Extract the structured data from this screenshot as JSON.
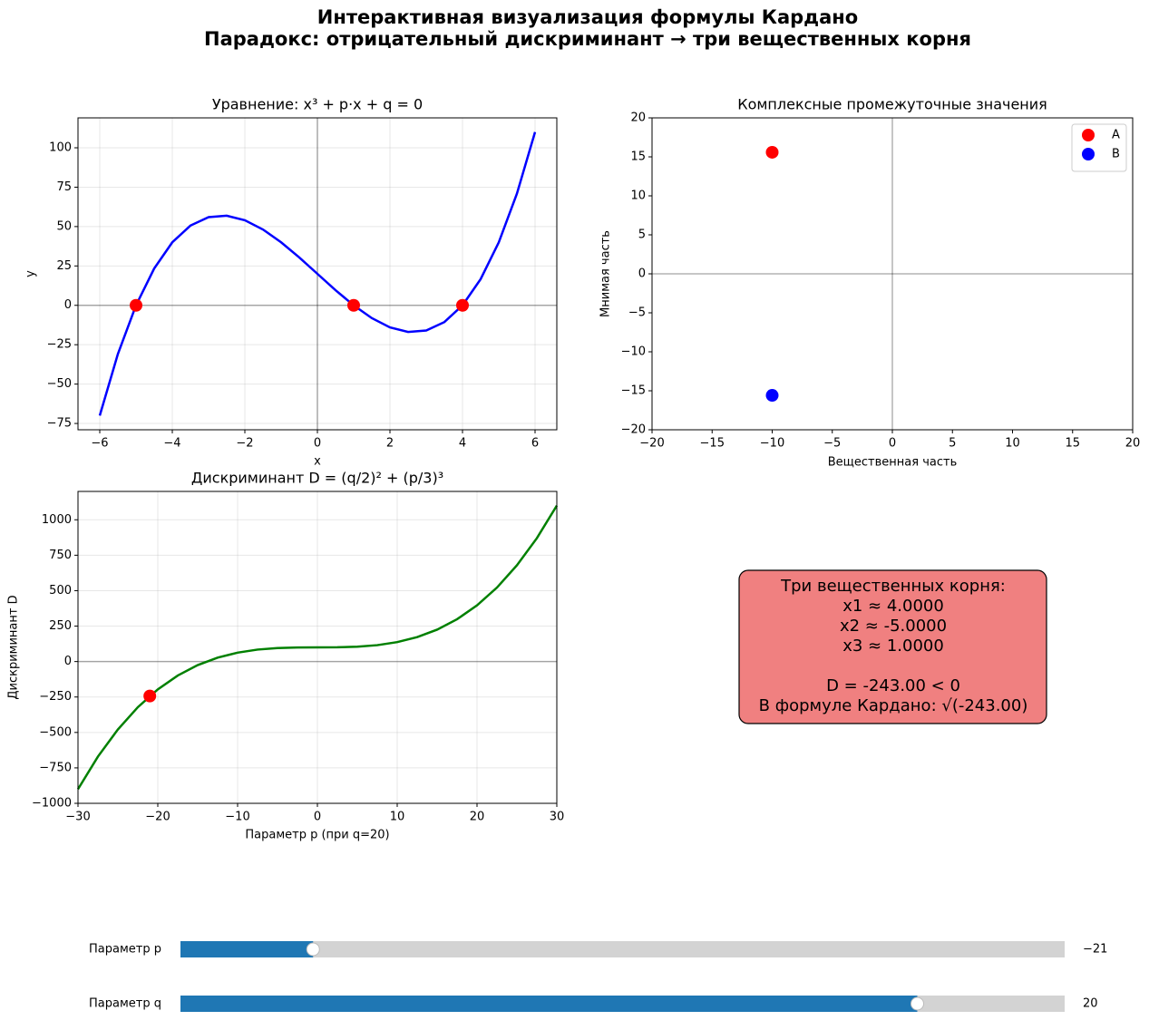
{
  "title_lines": [
    "Интерактивная визуализация формулы Кардано",
    "Парадокс: отрицательный дискриминант → три вещественных корня"
  ],
  "chart_data": [
    {
      "type": "line",
      "title": "Уравнение: x³ + p·x + q = 0",
      "xlabel": "x",
      "ylabel": "y",
      "xlim": [
        -6.6,
        6.6
      ],
      "ylim": [
        -79,
        119
      ],
      "xticks": [
        {
          "value": -6,
          "label": "−6"
        },
        {
          "value": -4,
          "label": "−4"
        },
        {
          "value": -2,
          "label": "−2"
        },
        0,
        2,
        4,
        6
      ],
      "yticks": [
        {
          "value": -75,
          "label": "−75"
        },
        {
          "value": -50,
          "label": "−50"
        },
        {
          "value": -25,
          "label": "−25"
        },
        0,
        25,
        50,
        75,
        100
      ],
      "grid": true,
      "hlines": [
        0
      ],
      "vlines": [
        0
      ],
      "series": [
        {
          "type": "line",
          "color": "#0000ff",
          "x": [
            -6,
            -5.5,
            -5,
            -4.5,
            -4,
            -3.5,
            -3,
            -2.5,
            -2,
            -1.5,
            -1,
            -0.5,
            0,
            0.5,
            1,
            1.5,
            2,
            2.5,
            3,
            3.5,
            4,
            4.5,
            5,
            5.5,
            6
          ],
          "y": [
            -70,
            -30.875,
            0,
            23.375,
            40,
            50.625,
            56,
            56.875,
            54,
            48.125,
            40,
            30.375,
            20,
            9.625,
            0,
            -8.125,
            -14,
            -16.875,
            -16,
            -10.625,
            0,
            16.625,
            40,
            70.875,
            110
          ]
        },
        {
          "type": "scatter",
          "color": "#ff0000",
          "x": [
            4,
            -5,
            1
          ],
          "y": [
            0,
            0,
            0
          ]
        }
      ]
    },
    {
      "type": "scatter",
      "title": "Комплексные промежуточные значения",
      "xlabel": "Вещественная часть",
      "ylabel": "Мнимая часть",
      "xlim": [
        -20,
        20
      ],
      "ylim": [
        -20,
        20
      ],
      "xticks": [
        {
          "value": -20,
          "label": "−20"
        },
        {
          "value": -15,
          "label": "−15"
        },
        {
          "value": -10,
          "label": "−10"
        },
        {
          "value": -5,
          "label": "−5"
        },
        0,
        5,
        10,
        15,
        20
      ],
      "yticks": [
        {
          "value": -20,
          "label": "−20"
        },
        {
          "value": -15,
          "label": "−15"
        },
        {
          "value": -10,
          "label": "−10"
        },
        {
          "value": -5,
          "label": "−5"
        },
        0,
        5,
        10,
        15,
        20
      ],
      "grid": false,
      "hlines": [
        0
      ],
      "vlines": [
        0
      ],
      "legend": "upper right",
      "series": [
        {
          "type": "scatter",
          "name": "A",
          "color": "#ff0000",
          "x": [
            -10
          ],
          "y": [
            15.588
          ]
        },
        {
          "type": "scatter",
          "name": "B",
          "color": "#0000ff",
          "x": [
            -10
          ],
          "y": [
            -15.588
          ]
        }
      ]
    },
    {
      "type": "line",
      "title": "Дискриминант D = (q/2)² + (p/3)³",
      "xlabel": "Параметр p (при q=20)",
      "ylabel": "Дискриминант D",
      "xlim": [
        -30,
        30
      ],
      "ylim": [
        -1000,
        1200
      ],
      "xticks": [
        {
          "value": -30,
          "label": "−30"
        },
        {
          "value": -20,
          "label": "−20"
        },
        {
          "value": -10,
          "label": "−10"
        },
        0,
        10,
        20,
        30
      ],
      "yticks": [
        {
          "value": -1000,
          "label": "−1000"
        },
        {
          "value": -750,
          "label": "−750"
        },
        {
          "value": -500,
          "label": "−500"
        },
        {
          "value": -250,
          "label": "−250"
        },
        0,
        250,
        500,
        750,
        1000
      ],
      "grid": true,
      "hlines": [
        0
      ],
      "series": [
        {
          "type": "line",
          "color": "#008000",
          "x": [
            -30,
            -27.5,
            -25,
            -22.5,
            -20,
            -17.5,
            -15,
            -12.5,
            -10,
            -7.5,
            -5,
            -2.5,
            0,
            2.5,
            5,
            7.5,
            10,
            12.5,
            15,
            17.5,
            20,
            22.5,
            25,
            27.5,
            30
          ],
          "y": [
            -900,
            -670.25,
            -478.7,
            -321.88,
            -196.3,
            -98.5,
            -25,
            27.66,
            62.96,
            84.38,
            95.37,
            99.42,
            100,
            100.58,
            104.63,
            115.63,
            137.04,
            172.34,
            225,
            298.5,
            396.3,
            521.88,
            678.7,
            870.25,
            1100
          ]
        },
        {
          "type": "scatter",
          "color": "#ff0000",
          "x": [
            -21
          ],
          "y": [
            -243
          ]
        }
      ]
    }
  ],
  "info_box": {
    "sections": [
      [
        "Три вещественных корня:",
        "x1 ≈ 4.0000",
        "x2 ≈ -5.0000",
        "x3 ≈ 1.0000"
      ],
      [
        "D = -243.00 < 0",
        "В формуле Кардано: √(-243.00)"
      ]
    ],
    "color": "#f08080"
  },
  "sliders": [
    {
      "label": "Параметр p",
      "min": -30,
      "max": 30,
      "value": -21,
      "value_label": "−21"
    },
    {
      "label": "Параметр q",
      "min": -30,
      "max": 30,
      "value": 20,
      "value_label": "20"
    }
  ]
}
